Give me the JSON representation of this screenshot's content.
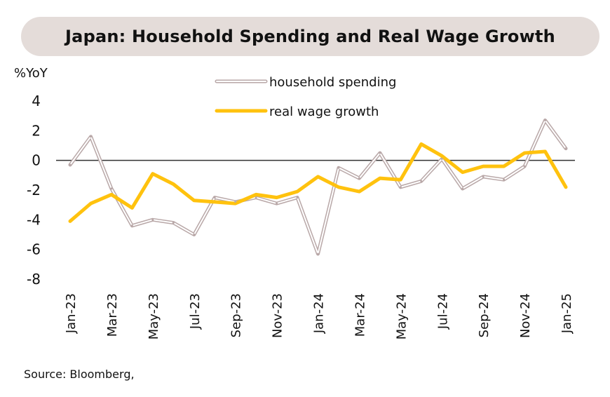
{
  "title": "Japan: Household Spending and Real Wage Growth",
  "unit_label": "%YoY",
  "source": "Source: Bloomberg,",
  "colors": {
    "spending": "#b9a8a8",
    "wages": "#ffc20e",
    "zero_line": "#333333",
    "title_bg": "#e4dcd9"
  },
  "chart_data": {
    "type": "line",
    "ylim": [
      -8,
      4
    ],
    "yticks": [
      4,
      2,
      0,
      -2,
      -4,
      -6,
      -8
    ],
    "x": [
      "Jan-23",
      "Feb-23",
      "Mar-23",
      "Apr-23",
      "May-23",
      "Jun-23",
      "Jul-23",
      "Aug-23",
      "Sep-23",
      "Oct-23",
      "Nov-23",
      "Dec-23",
      "Jan-24",
      "Feb-24",
      "Mar-24",
      "Apr-24",
      "May-24",
      "Jun-24",
      "Jul-24",
      "Aug-24",
      "Sep-24",
      "Oct-24",
      "Nov-24",
      "Dec-24",
      "Jan-25"
    ],
    "xtick_labels": [
      "Jan-23",
      "",
      "Mar-23",
      "",
      "May-23",
      "",
      "Jul-23",
      "",
      "Sep-23",
      "",
      "Nov-23",
      "",
      "Jan-24",
      "",
      "Mar-24",
      "",
      "May-24",
      "",
      "Jul-24",
      "",
      "Sep-24",
      "",
      "Nov-24",
      "",
      "Jan-25"
    ],
    "legend_position": "top-center",
    "series": [
      {
        "name": "household spending",
        "style": "double-outline",
        "values": [
          -0.3,
          1.6,
          -1.9,
          -4.4,
          -4.0,
          -4.2,
          -5.0,
          -2.5,
          -2.8,
          -2.5,
          -2.9,
          -2.5,
          -6.3,
          -0.5,
          -1.2,
          0.5,
          -1.8,
          -1.4,
          0.1,
          -1.9,
          -1.1,
          -1.3,
          -0.4,
          2.7,
          0.8
        ]
      },
      {
        "name": "real wage growth",
        "style": "solid",
        "values": [
          -4.1,
          -2.9,
          -2.3,
          -3.2,
          -0.9,
          -1.6,
          -2.7,
          -2.8,
          -2.9,
          -2.3,
          -2.5,
          -2.1,
          -1.1,
          -1.8,
          -2.1,
          -1.2,
          -1.3,
          1.1,
          0.3,
          -0.8,
          -0.4,
          -0.4,
          0.5,
          0.6,
          -1.8
        ]
      }
    ]
  }
}
